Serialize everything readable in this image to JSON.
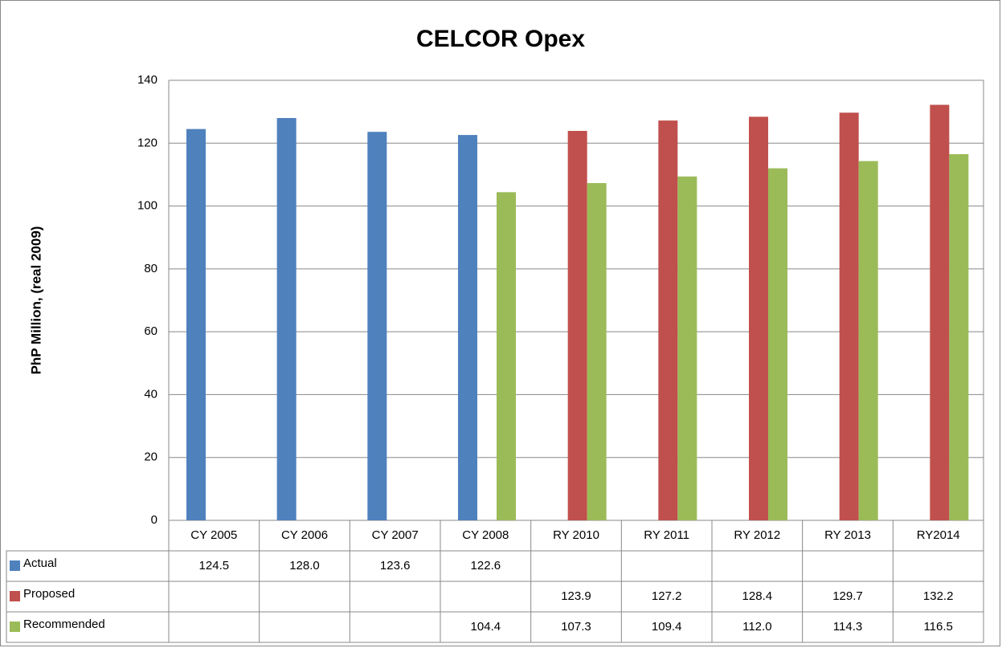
{
  "chart_data": {
    "type": "bar",
    "title": "CELCOR Opex",
    "y_label": "PhP Million, (real 2009)",
    "categories": [
      "CY 2005",
      "CY 2006",
      "CY 2007",
      "CY 2008",
      "RY 2010",
      "RY 2011",
      "RY 2012",
      "RY 2013",
      "RY2014"
    ],
    "series": [
      {
        "name": "Actual",
        "color": "#4f81bd",
        "values": [
          124.5,
          128.0,
          123.6,
          122.6,
          null,
          null,
          null,
          null,
          null
        ],
        "value_labels": [
          "124.5",
          "128.0",
          "123.6",
          "122.6",
          null,
          null,
          null,
          null,
          null
        ]
      },
      {
        "name": "Proposed",
        "color": "#c0504d",
        "values": [
          null,
          null,
          null,
          null,
          123.9,
          127.2,
          128.4,
          129.7,
          132.2
        ],
        "value_labels": [
          null,
          null,
          null,
          null,
          "123.9",
          "127.2",
          "128.4",
          "129.7",
          "132.2"
        ]
      },
      {
        "name": "Recommended",
        "color": "#9bbb59",
        "values": [
          null,
          null,
          null,
          104.4,
          107.3,
          109.4,
          112.0,
          114.3,
          116.5
        ],
        "value_labels": [
          null,
          null,
          null,
          "104.4",
          "107.3",
          "109.4",
          "112.0",
          "114.3",
          "116.5"
        ]
      }
    ],
    "ylim": [
      0,
      140
    ],
    "yticks": [
      0,
      20,
      40,
      60,
      80,
      100,
      120,
      140
    ],
    "grid": true
  }
}
